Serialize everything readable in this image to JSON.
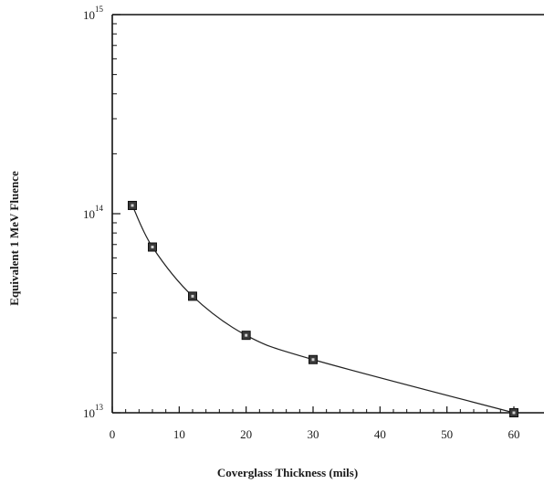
{
  "chart_data": {
    "type": "scatter",
    "title": "",
    "xlabel": "Coverglass Thickness (mils)",
    "ylabel": "Equivalent 1 MeV Fluence",
    "xlim": [
      0,
      65
    ],
    "ylim": [
      10000000000000.0,
      1000000000000000.0
    ],
    "yscale": "log",
    "x_ticks": [
      "0",
      "10",
      "20",
      "30",
      "40",
      "50",
      "60"
    ],
    "y_ticks": [
      {
        "base": "10",
        "exp": "13"
      },
      {
        "base": "10",
        "exp": "14"
      },
      {
        "base": "10",
        "exp": "15"
      }
    ],
    "grid": false,
    "line": "smooth",
    "marker": "square",
    "series": [
      {
        "x": [
          3,
          6,
          12,
          20,
          30,
          60
        ],
        "y": [
          110000000000000.0,
          68000000000000.0,
          38500000000000.0,
          24500000000000.0,
          18500000000000.0,
          10000000000000.0
        ]
      }
    ]
  }
}
